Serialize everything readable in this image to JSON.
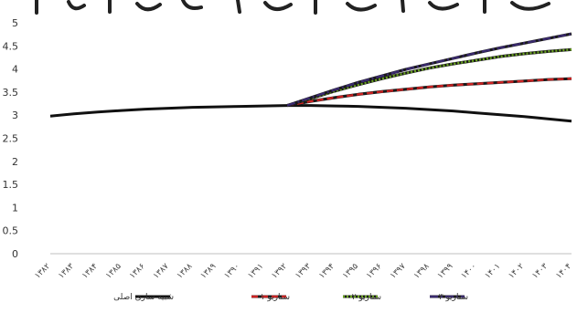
{
  "chart_data": {
    "type": "line",
    "title": "",
    "xlabel": "",
    "ylabel": "",
    "ylim": [
      0,
      5
    ],
    "yticks": [
      "0",
      "0.5",
      "1",
      "1.5",
      "2",
      "2.5",
      "3",
      "3.5",
      "4",
      "4.5",
      "5"
    ],
    "categories": [
      "۱۳۸۲",
      "۱۳۸۳",
      "۱۳۸۴",
      "۱۳۸۵",
      "۱۳۸۶",
      "۱۳۸۷",
      "۱۳۸۸",
      "۱۳۸۹",
      "۱۳۹۰",
      "۱۳۹۱",
      "۱۳۹۲",
      "۱۳۹۳",
      "۱۳۹۴",
      "۱۳۹۵",
      "۱۳۹۶",
      "۱۳۹۷",
      "۱۳۹۸",
      "۱۳۹۹",
      "۱۴۰۰",
      "۱۴۰۱",
      "۱۴۰۲",
      "۱۴۰۳",
      "۱۴۰۴"
    ],
    "grid": false,
    "legend_position": "bottom",
    "series": [
      {
        "name": "شبیه سازی اصلی",
        "color": "#111111",
        "style": "solid",
        "values": [
          2.98,
          3.03,
          3.07,
          3.1,
          3.13,
          3.15,
          3.17,
          3.18,
          3.19,
          3.2,
          3.21,
          3.21,
          3.2,
          3.19,
          3.17,
          3.15,
          3.12,
          3.09,
          3.05,
          3.01,
          2.97,
          2.92,
          2.87
        ]
      },
      {
        "name": "سناریو ۱",
        "color": "#cc2222",
        "style": "dashed",
        "values": [
          null,
          null,
          null,
          null,
          null,
          null,
          null,
          null,
          null,
          null,
          3.21,
          3.3,
          3.38,
          3.45,
          3.51,
          3.56,
          3.61,
          3.65,
          3.68,
          3.71,
          3.74,
          3.77,
          3.79
        ]
      },
      {
        "name": "سناریو ۲",
        "color": "#6aa51e",
        "style": "dotted",
        "values": [
          null,
          null,
          null,
          null,
          null,
          null,
          null,
          null,
          null,
          null,
          3.21,
          3.36,
          3.52,
          3.66,
          3.79,
          3.91,
          4.02,
          4.11,
          4.19,
          4.27,
          4.33,
          4.38,
          4.42
        ]
      },
      {
        "name": "سناریو ۳",
        "color": "#3a2a6e",
        "style": "dashdot",
        "values": [
          null,
          null,
          null,
          null,
          null,
          null,
          null,
          null,
          null,
          null,
          3.21,
          3.38,
          3.55,
          3.71,
          3.85,
          3.99,
          4.11,
          4.23,
          4.35,
          4.46,
          4.56,
          4.66,
          4.76
        ]
      }
    ]
  }
}
